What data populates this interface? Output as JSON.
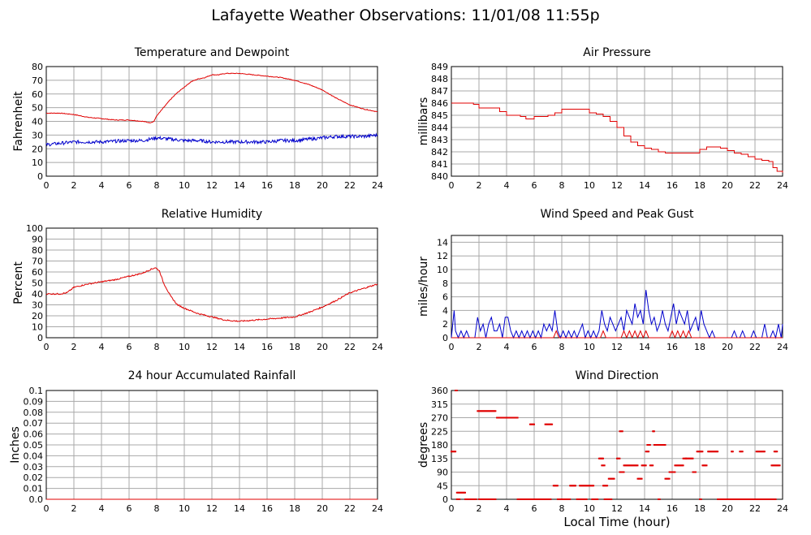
{
  "page_title": "Lafayette Weather Observations: 11/01/08 11:55p",
  "x_axis_label": "Local Time (hour)",
  "colors": {
    "grid": "#a8a8a8",
    "red": "#e00000",
    "blue": "#0000cc",
    "axis": "#000000"
  },
  "chart_data": [
    {
      "type": "line",
      "title": "Temperature and Dewpoint",
      "ylabel": "Fahrenheit",
      "xlim": [
        0,
        24
      ],
      "ylim": [
        0,
        80
      ],
      "xticks": [
        0,
        2,
        4,
        6,
        8,
        10,
        12,
        14,
        16,
        18,
        20,
        22,
        24
      ],
      "yticks": [
        0,
        10,
        20,
        30,
        40,
        50,
        60,
        70,
        80
      ],
      "series": [
        {
          "color": "red",
          "noise": 0.25,
          "x": [
            0,
            1,
            2,
            3,
            4,
            5,
            6,
            7,
            7.5,
            7.8,
            8,
            8.5,
            9,
            9.5,
            10,
            10.5,
            11,
            11.5,
            12,
            12.5,
            13,
            13.5,
            14,
            15,
            16,
            17,
            18,
            19,
            20,
            21,
            22,
            23,
            24
          ],
          "y": [
            46,
            46,
            45,
            43,
            42,
            41,
            41,
            40,
            39,
            40,
            44,
            50,
            56,
            61,
            65,
            69,
            71,
            72,
            74,
            74,
            75,
            75,
            75,
            74,
            73,
            72,
            70,
            67,
            63,
            57,
            52,
            49,
            47
          ]
        },
        {
          "color": "blue",
          "noise": 1.2,
          "x": [
            0,
            1,
            2,
            4,
            6,
            7,
            7.5,
            8,
            9,
            10,
            11,
            12,
            13,
            14,
            15,
            16,
            17,
            18,
            19,
            20,
            21,
            22,
            23,
            24
          ],
          "y": [
            23,
            24,
            25,
            25,
            26,
            26,
            27,
            28,
            27,
            26,
            26,
            25,
            25,
            25,
            25,
            25,
            26,
            26,
            27,
            28,
            29,
            29,
            29,
            30
          ]
        }
      ]
    },
    {
      "type": "line",
      "title": "Air Pressure",
      "ylabel": "millibars",
      "xlim": [
        0,
        24
      ],
      "ylim": [
        840,
        849
      ],
      "xticks": [
        0,
        2,
        4,
        6,
        8,
        10,
        12,
        14,
        16,
        18,
        20,
        22,
        24
      ],
      "yticks": [
        840,
        841,
        842,
        843,
        844,
        845,
        846,
        847,
        848,
        849
      ],
      "series": [
        {
          "color": "red",
          "step": true,
          "x": [
            0,
            1.6,
            2,
            3.5,
            4,
            5,
            5.4,
            6,
            7,
            7.5,
            8,
            9,
            10,
            10.5,
            11,
            11.5,
            12,
            12.5,
            13,
            13.5,
            14,
            14.5,
            15,
            15.5,
            16,
            17,
            17.5,
            18,
            18.5,
            19,
            19.5,
            20,
            20.5,
            21,
            21.5,
            22,
            22.5,
            23,
            23.3,
            23.6,
            24
          ],
          "y": [
            846.0,
            845.9,
            845.6,
            845.3,
            845.0,
            844.9,
            844.7,
            844.9,
            845.0,
            845.2,
            845.5,
            845.5,
            845.2,
            845.1,
            844.9,
            844.5,
            844.0,
            843.3,
            842.8,
            842.5,
            842.3,
            842.2,
            842.0,
            841.9,
            841.9,
            841.9,
            841.9,
            842.2,
            842.4,
            842.4,
            842.3,
            842.1,
            841.9,
            841.8,
            841.6,
            841.4,
            841.3,
            841.2,
            840.7,
            840.4,
            840.3
          ]
        }
      ]
    },
    {
      "type": "line",
      "title": "Relative Humidity",
      "ylabel": "Percent",
      "xlim": [
        0,
        24
      ],
      "ylim": [
        0,
        100
      ],
      "xticks": [
        0,
        2,
        4,
        6,
        8,
        10,
        12,
        14,
        16,
        18,
        20,
        22,
        24
      ],
      "yticks": [
        0,
        10,
        20,
        30,
        40,
        50,
        60,
        70,
        80,
        90,
        100
      ],
      "series": [
        {
          "color": "red",
          "noise": 0.6,
          "x": [
            0,
            1,
            1.5,
            2,
            3,
            4,
            5,
            6,
            7,
            7.5,
            7.9,
            8.2,
            8.5,
            9,
            9.5,
            10,
            11,
            12,
            13,
            14,
            15,
            16,
            17,
            18,
            19,
            20,
            21,
            22,
            23,
            24
          ],
          "y": [
            40,
            40,
            41,
            46,
            49,
            51,
            53,
            56,
            59,
            62,
            64,
            61,
            50,
            38,
            30,
            27,
            22,
            19,
            16,
            15,
            16,
            17,
            18,
            19,
            23,
            28,
            34,
            41,
            45,
            49
          ]
        }
      ]
    },
    {
      "type": "line",
      "title": "Wind Speed and Peak Gust",
      "ylabel": "miles/hour",
      "xlim": [
        0,
        24
      ],
      "ylim": [
        0,
        15
      ],
      "xticks": [
        0,
        2,
        4,
        6,
        8,
        10,
        12,
        14,
        16,
        18,
        20,
        22,
        24
      ],
      "yticks": [
        0,
        2,
        4,
        6,
        8,
        10,
        12,
        14
      ],
      "series": [
        {
          "color": "blue",
          "x": [
            0,
            0.2,
            0.3,
            0.5,
            0.7,
            0.9,
            1.1,
            1.3,
            1.7,
            1.9,
            2.1,
            2.3,
            2.5,
            2.7,
            2.9,
            3.1,
            3.3,
            3.5,
            3.7,
            3.9,
            4.1,
            4.3,
            4.5,
            4.7,
            4.9,
            5.1,
            5.3,
            5.5,
            5.7,
            5.9,
            6.1,
            6.3,
            6.5,
            6.7,
            6.9,
            7.1,
            7.3,
            7.5,
            7.7,
            7.9,
            8.1,
            8.3,
            8.5,
            8.7,
            8.9,
            9.1,
            9.3,
            9.5,
            9.7,
            9.9,
            10.1,
            10.3,
            10.5,
            10.7,
            10.9,
            11.1,
            11.3,
            11.5,
            11.7,
            11.9,
            12.1,
            12.3,
            12.5,
            12.7,
            12.9,
            13.1,
            13.3,
            13.5,
            13.7,
            13.9,
            14.1,
            14.3,
            14.5,
            14.7,
            14.9,
            15.1,
            15.3,
            15.5,
            15.7,
            15.9,
            16.1,
            16.3,
            16.5,
            16.7,
            16.9,
            17.1,
            17.3,
            17.5,
            17.7,
            17.9,
            18.1,
            18.3,
            18.5,
            18.7,
            18.9,
            19.1,
            19.3,
            19.5,
            19.7,
            19.9,
            20.1,
            20.3,
            20.5,
            20.7,
            20.9,
            21.1,
            21.3,
            21.5,
            21.7,
            21.9,
            22.1,
            22.3,
            22.5,
            22.7,
            22.9,
            23.1,
            23.3,
            23.5,
            23.7,
            23.9,
            24
          ],
          "y": [
            0,
            4,
            1,
            0,
            1,
            0,
            1,
            0,
            0,
            3,
            1,
            2,
            0,
            2,
            3,
            1,
            1,
            2,
            0,
            3,
            3,
            1,
            0,
            1,
            0,
            1,
            0,
            1,
            0,
            1,
            0,
            1,
            0,
            2,
            1,
            2,
            1,
            4,
            1,
            0,
            1,
            0,
            1,
            0,
            1,
            0,
            1,
            2,
            0,
            1,
            0,
            1,
            0,
            1,
            4,
            2,
            1,
            3,
            2,
            1,
            2,
            3,
            1,
            4,
            3,
            2,
            5,
            3,
            4,
            2,
            7,
            4,
            2,
            3,
            1,
            2,
            4,
            2,
            1,
            3,
            5,
            2,
            4,
            3,
            2,
            4,
            1,
            2,
            3,
            1,
            4,
            2,
            1,
            0,
            1,
            0,
            0,
            0,
            0,
            0,
            0,
            0,
            1,
            0,
            0,
            1,
            0,
            0,
            0,
            1,
            0,
            0,
            0,
            2,
            0,
            0,
            1,
            0,
            2,
            0,
            2
          ]
        },
        {
          "color": "red",
          "x": [
            0,
            7.4,
            7.6,
            7.8,
            8.0,
            10.8,
            11.0,
            11.2,
            11.4,
            12.3,
            12.5,
            12.7,
            12.9,
            13.1,
            13.3,
            13.5,
            13.7,
            13.9,
            14.1,
            14.3,
            14.5,
            15.8,
            16.0,
            16.2,
            16.4,
            16.6,
            16.8,
            17.0,
            17.2,
            17.4,
            17.6,
            24
          ],
          "y": [
            0,
            0,
            1,
            0,
            0,
            0,
            1,
            0,
            0,
            0,
            1,
            0,
            1,
            0,
            1,
            0,
            1,
            0,
            1,
            0,
            0,
            0,
            1,
            0,
            1,
            0,
            1,
            0,
            1,
            0,
            0,
            0
          ]
        }
      ]
    },
    {
      "type": "line",
      "title": "24 hour Accumulated Rainfall",
      "ylabel": "Inches",
      "xlim": [
        0,
        24
      ],
      "ylim": [
        0,
        0.1
      ],
      "xticks": [
        0,
        2,
        4,
        6,
        8,
        10,
        12,
        14,
        16,
        18,
        20,
        22,
        24
      ],
      "yticks": [
        0.0,
        0.01,
        0.02,
        0.03,
        0.04,
        0.05,
        0.06,
        0.07,
        0.08,
        0.09,
        0.1
      ],
      "ytick_labels": [
        "0.0",
        "0.01",
        "0.02",
        "0.03",
        "0.04",
        "0.05",
        "0.06",
        "0.07",
        "0.08",
        "0.09",
        "0.1"
      ],
      "series": [
        {
          "color": "red",
          "x": [
            0,
            24
          ],
          "y": [
            0,
            0
          ]
        }
      ]
    },
    {
      "type": "scatter",
      "title": "Wind Direction",
      "ylabel": "degrees",
      "xlim": [
        0,
        24
      ],
      "ylim": [
        0,
        360
      ],
      "xticks": [
        0,
        2,
        4,
        6,
        8,
        10,
        12,
        14,
        16,
        18,
        20,
        22,
        24
      ],
      "yticks": [
        0,
        45,
        90,
        135,
        180,
        225,
        270,
        315,
        360
      ],
      "series": [
        {
          "color": "red",
          "segments": [
            [
              0.0,
              0.3,
              158
            ],
            [
              0.3,
              0.4,
              360
            ],
            [
              0.4,
              1.0,
              22
            ],
            [
              0.4,
              0.6,
              0
            ],
            [
              1.0,
              1.8,
              0
            ],
            [
              1.9,
              3.2,
              292
            ],
            [
              2.0,
              3.2,
              0
            ],
            [
              3.3,
              4.1,
              270
            ],
            [
              4.1,
              4.8,
              270
            ],
            [
              4.8,
              5.2,
              0
            ],
            [
              5.7,
              6.0,
              248
            ],
            [
              5.3,
              7.2,
              0
            ],
            [
              6.8,
              7.3,
              248
            ],
            [
              7.4,
              7.7,
              45
            ],
            [
              7.7,
              8.2,
              0
            ],
            [
              8.2,
              8.6,
              0
            ],
            [
              8.6,
              9.0,
              45
            ],
            [
              9.1,
              9.8,
              0
            ],
            [
              9.3,
              10.3,
              45
            ],
            [
              10.2,
              10.6,
              0
            ],
            [
              10.7,
              11.0,
              135
            ],
            [
              10.9,
              11.1,
              112
            ],
            [
              11.0,
              11.3,
              45
            ],
            [
              11.4,
              11.8,
              68
            ],
            [
              11.1,
              11.6,
              0
            ],
            [
              12.0,
              12.2,
              135
            ],
            [
              12.2,
              12.4,
              225
            ],
            [
              12.2,
              12.5,
              90
            ],
            [
              12.5,
              13.5,
              112
            ],
            [
              13.5,
              13.8,
              68
            ],
            [
              13.8,
              14.1,
              112
            ],
            [
              14.1,
              14.3,
              158
            ],
            [
              14.2,
              14.4,
              180
            ],
            [
              14.4,
              14.6,
              112
            ],
            [
              14.6,
              14.7,
              225
            ],
            [
              14.7,
              15.5,
              180
            ],
            [
              15.5,
              15.8,
              68
            ],
            [
              15.8,
              16.2,
              90
            ],
            [
              16.2,
              16.8,
              112
            ],
            [
              16.8,
              17.0,
              135
            ],
            [
              17.0,
              17.5,
              135
            ],
            [
              17.5,
              17.7,
              90
            ],
            [
              17.8,
              18.2,
              158
            ],
            [
              18.2,
              18.5,
              112
            ],
            [
              18.6,
              19.3,
              158
            ],
            [
              19.3,
              19.5,
              0
            ],
            [
              19.5,
              23.5,
              0
            ],
            [
              20.3,
              20.4,
              158
            ],
            [
              20.9,
              21.1,
              158
            ],
            [
              22.1,
              22.7,
              158
            ],
            [
              23.2,
              23.8,
              112
            ],
            [
              23.4,
              23.6,
              158
            ],
            [
              18.0,
              18.1,
              0
            ],
            [
              15.0,
              15.1,
              0
            ]
          ]
        }
      ]
    }
  ]
}
